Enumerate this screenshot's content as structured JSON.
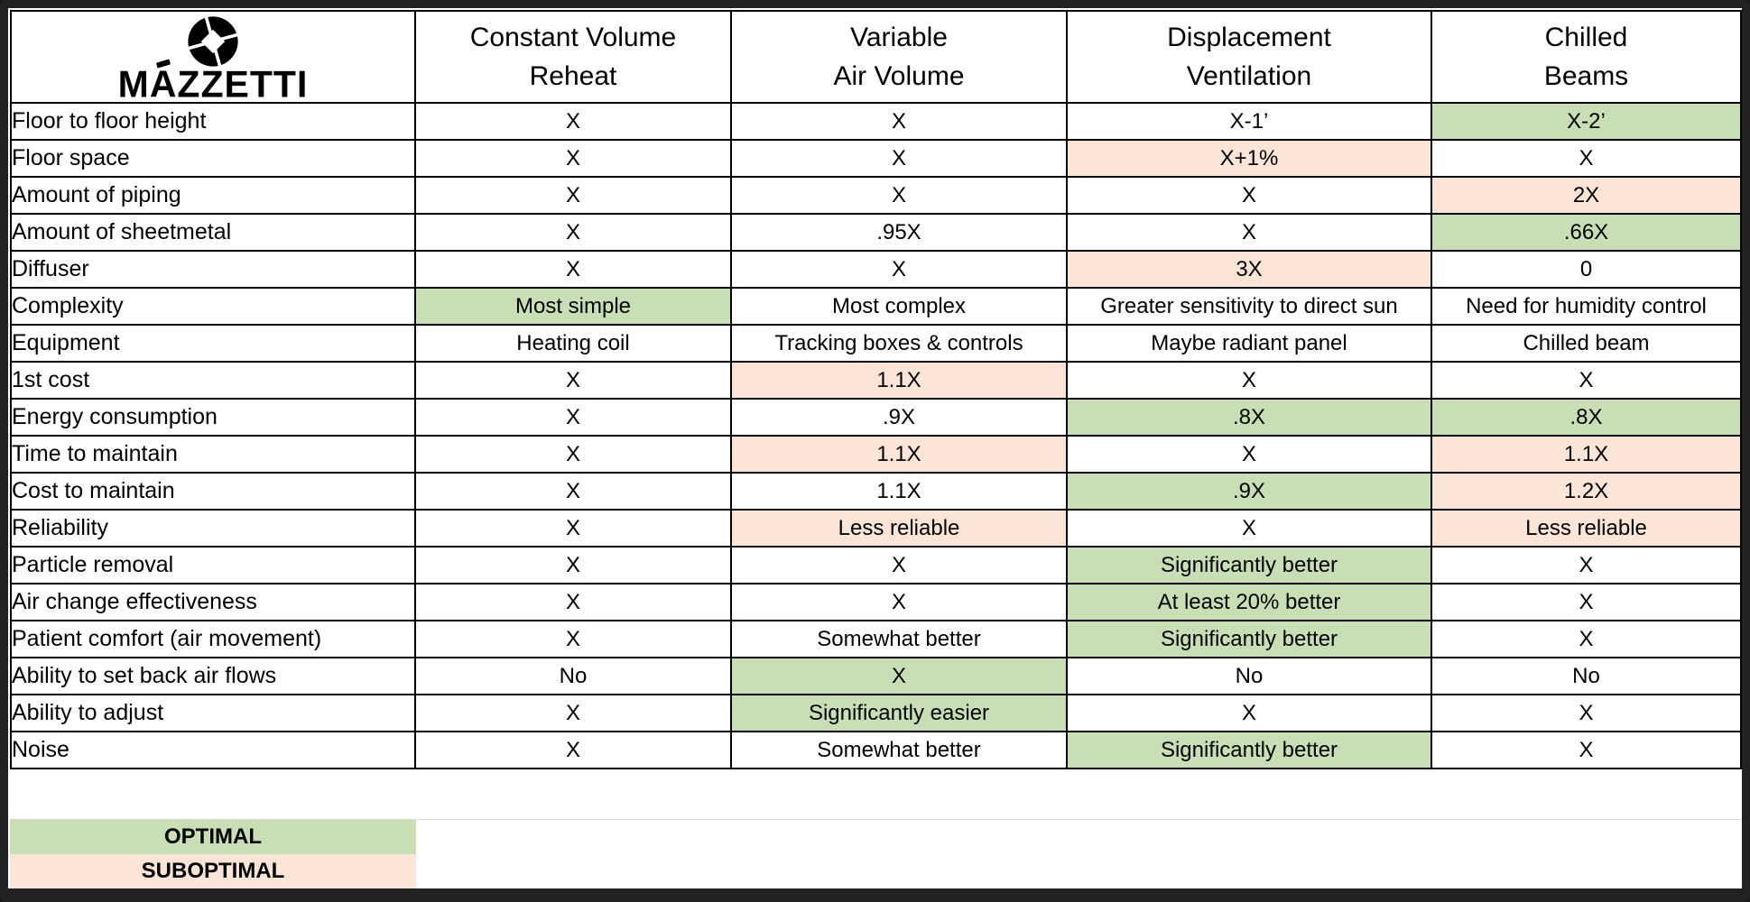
{
  "brand": {
    "name_prefix": "M",
    "name_accent_char": "A",
    "name_suffix": "ZZETTI",
    "logo_icon": "aperture-diamond-icon"
  },
  "table": {
    "column_headers": [
      {
        "line1": "Constant Volume",
        "line2": "Reheat"
      },
      {
        "line1": "Variable",
        "line2": "Air Volume"
      },
      {
        "line1": "Displacement",
        "line2": "Ventilation"
      },
      {
        "line1": "Chilled",
        "line2": "Beams"
      }
    ],
    "rows": [
      {
        "label": "Floor to floor height",
        "cells": [
          {
            "text": "X",
            "status": "none"
          },
          {
            "text": "X",
            "status": "none"
          },
          {
            "text": "X-1’",
            "status": "none"
          },
          {
            "text": "X-2’",
            "status": "optimal"
          }
        ]
      },
      {
        "label": "Floor space",
        "cells": [
          {
            "text": "X",
            "status": "none"
          },
          {
            "text": "X",
            "status": "none"
          },
          {
            "text": "X+1%",
            "status": "suboptimal"
          },
          {
            "text": "X",
            "status": "none"
          }
        ]
      },
      {
        "label": "Amount of piping",
        "cells": [
          {
            "text": "X",
            "status": "none"
          },
          {
            "text": "X",
            "status": "none"
          },
          {
            "text": "X",
            "status": "none"
          },
          {
            "text": "2X",
            "status": "suboptimal"
          }
        ]
      },
      {
        "label": "Amount of sheetmetal",
        "cells": [
          {
            "text": "X",
            "status": "none"
          },
          {
            "text": ".95X",
            "status": "none"
          },
          {
            "text": "X",
            "status": "none"
          },
          {
            "text": ".66X",
            "status": "optimal"
          }
        ]
      },
      {
        "label": "Diffuser",
        "cells": [
          {
            "text": "X",
            "status": "none"
          },
          {
            "text": "X",
            "status": "none"
          },
          {
            "text": "3X",
            "status": "suboptimal"
          },
          {
            "text": "0",
            "status": "none"
          }
        ]
      },
      {
        "label": "Complexity",
        "cells": [
          {
            "text": "Most simple",
            "status": "optimal"
          },
          {
            "text": "Most complex",
            "status": "none"
          },
          {
            "text": "Greater sensitivity to direct sun",
            "status": "none"
          },
          {
            "text": "Need for humidity control",
            "status": "none"
          }
        ]
      },
      {
        "label": "Equipment",
        "cells": [
          {
            "text": "Heating coil",
            "status": "none"
          },
          {
            "text": "Tracking boxes & controls",
            "status": "none"
          },
          {
            "text": "Maybe radiant panel",
            "status": "none"
          },
          {
            "text": "Chilled beam",
            "status": "none"
          }
        ]
      },
      {
        "label": "1st cost",
        "cells": [
          {
            "text": "X",
            "status": "none"
          },
          {
            "text": "1.1X",
            "status": "suboptimal"
          },
          {
            "text": "X",
            "status": "none"
          },
          {
            "text": "X",
            "status": "none"
          }
        ]
      },
      {
        "label": "Energy consumption",
        "cells": [
          {
            "text": "X",
            "status": "none"
          },
          {
            "text": ".9X",
            "status": "none"
          },
          {
            "text": ".8X",
            "status": "optimal"
          },
          {
            "text": ".8X",
            "status": "optimal"
          }
        ]
      },
      {
        "label": "Time to maintain",
        "cells": [
          {
            "text": "X",
            "status": "none"
          },
          {
            "text": "1.1X",
            "status": "suboptimal"
          },
          {
            "text": "X",
            "status": "none"
          },
          {
            "text": "1.1X",
            "status": "suboptimal"
          }
        ]
      },
      {
        "label": "Cost to maintain",
        "cells": [
          {
            "text": "X",
            "status": "none"
          },
          {
            "text": "1.1X",
            "status": "none"
          },
          {
            "text": ".9X",
            "status": "optimal"
          },
          {
            "text": "1.2X",
            "status": "suboptimal"
          }
        ]
      },
      {
        "label": "Reliability",
        "cells": [
          {
            "text": "X",
            "status": "none"
          },
          {
            "text": "Less reliable",
            "status": "suboptimal"
          },
          {
            "text": "X",
            "status": "none"
          },
          {
            "text": "Less reliable",
            "status": "suboptimal"
          }
        ]
      },
      {
        "label": "Particle removal",
        "cells": [
          {
            "text": "X",
            "status": "none"
          },
          {
            "text": "X",
            "status": "none"
          },
          {
            "text": "Significantly better",
            "status": "optimal"
          },
          {
            "text": "X",
            "status": "none"
          }
        ]
      },
      {
        "label": "Air change effectiveness",
        "cells": [
          {
            "text": "X",
            "status": "none"
          },
          {
            "text": "X",
            "status": "none"
          },
          {
            "text": "At least 20% better",
            "status": "optimal"
          },
          {
            "text": "X",
            "status": "none"
          }
        ]
      },
      {
        "label": "Patient comfort (air movement)",
        "cells": [
          {
            "text": "X",
            "status": "none"
          },
          {
            "text": "Somewhat better",
            "status": "none"
          },
          {
            "text": "Significantly better",
            "status": "optimal"
          },
          {
            "text": "X",
            "status": "none"
          }
        ]
      },
      {
        "label": "Ability to set back air flows",
        "cells": [
          {
            "text": "No",
            "status": "none"
          },
          {
            "text": "X",
            "status": "optimal"
          },
          {
            "text": "No",
            "status": "none"
          },
          {
            "text": "No",
            "status": "none"
          }
        ]
      },
      {
        "label": "Ability to adjust",
        "cells": [
          {
            "text": "X",
            "status": "none"
          },
          {
            "text": "Significantly easier",
            "status": "optimal"
          },
          {
            "text": "X",
            "status": "none"
          },
          {
            "text": "X",
            "status": "none"
          }
        ]
      },
      {
        "label": "Noise",
        "cells": [
          {
            "text": "X",
            "status": "none"
          },
          {
            "text": "Somewhat better",
            "status": "none"
          },
          {
            "text": "Significantly better",
            "status": "optimal"
          },
          {
            "text": "X",
            "status": "none"
          }
        ]
      }
    ]
  },
  "legend": {
    "optimal_label": "OPTIMAL",
    "suboptimal_label": "SUBOPTIMAL"
  },
  "colors": {
    "optimal_bg": "#c8dfb5",
    "suboptimal_bg": "#fce5d6",
    "border": "#000000"
  }
}
